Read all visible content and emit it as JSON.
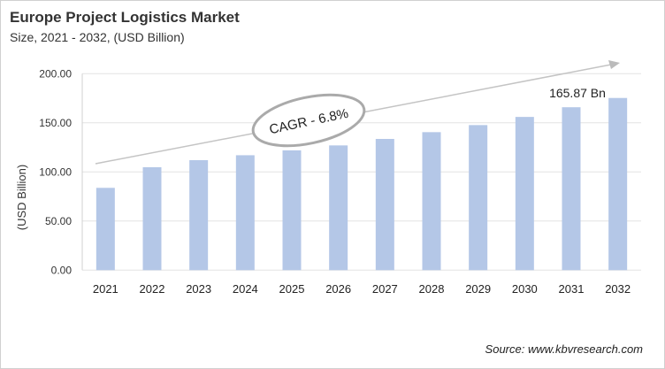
{
  "chart_data": {
    "type": "bar",
    "title": "Europe Project Logistics Market",
    "subtitle": "Size, 2021 - 2032, (USD Billion)",
    "xlabel": "",
    "ylabel": "(USD Billion)",
    "ylim": [
      0,
      200
    ],
    "yticks": [
      "0.00",
      "50.00",
      "100.00",
      "150.00",
      "200.00"
    ],
    "categories": [
      "2021",
      "2022",
      "2023",
      "2024",
      "2025",
      "2026",
      "2027",
      "2028",
      "2029",
      "2030",
      "2031",
      "2032"
    ],
    "values": [
      83.8,
      104.8,
      112.0,
      117.0,
      122.0,
      127.0,
      133.6,
      140.5,
      147.7,
      156.0,
      165.87,
      175.3
    ],
    "bar_color": "#b4c7e7",
    "grid": true,
    "annotations": {
      "cagr": "CAGR - 6.8%",
      "value_label": "165.87 Bn"
    },
    "source": "Source: www.kbvresearch.com"
  }
}
